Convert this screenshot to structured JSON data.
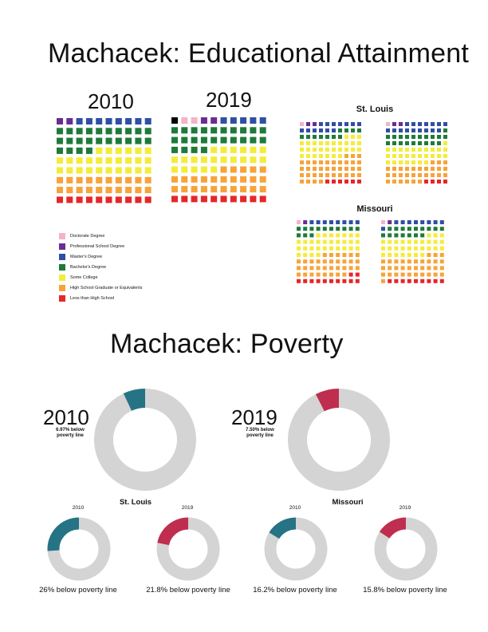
{
  "titles": {
    "education": "Machacek: Educational Attainment",
    "poverty": "Machacek: Poverty"
  },
  "education": {
    "colors": {
      "Doctorate Degree": "#f4b3c8",
      "Professional School Degree": "#6b2c91",
      "Master's Degree": "#2e4fa3",
      "Bachelor's Degree": "#1f7a3a",
      "Some College": "#f4ec3a",
      "High School Graduate or Equivalents": "#f7a33a",
      "Less than High School": "#e6262a",
      "Unknown": "#000000"
    },
    "legend": [
      {
        "label": "Doctorate Degree",
        "color": "#f4b3c8"
      },
      {
        "label": "Professional School Degree",
        "color": "#6b2c91"
      },
      {
        "label": "Master's Degree",
        "color": "#2e4fa3"
      },
      {
        "label": "Bachelor's Degree",
        "color": "#1f7a3a"
      },
      {
        "label": "Some College",
        "color": "#f4ec3a"
      },
      {
        "label": "High School Graduate or Equivalents",
        "color": "#f7a33a"
      },
      {
        "label": "Less than High School",
        "color": "#e6262a"
      }
    ],
    "labels": {
      "st_louis": "St. Louis",
      "missouri": "Missouri"
    }
  },
  "chart_data": [
    {
      "type": "waffle",
      "title": "2010",
      "rows": 9,
      "cols": 10,
      "counts": {
        "Professional School Degree": 2,
        "Master's Degree": 8,
        "Bachelor's Degree": 24,
        "Some College": 26,
        "High School Graduate or Equivalents": 20,
        "Less than High School": 10
      }
    },
    {
      "type": "waffle",
      "title": "2019",
      "rows": 9,
      "cols": 10,
      "counts": {
        "Unknown": 1,
        "Doctorate Degree": 2,
        "Professional School Degree": 2,
        "Master's Degree": 5,
        "Bachelor's Degree": 24,
        "Some College": 21,
        "High School Graduate or Equivalents": 25,
        "Less than High School": 10
      }
    },
    {
      "type": "waffle",
      "group": "St. Louis",
      "title": "",
      "rows": 10,
      "cols": 10,
      "counts": {
        "Doctorate Degree": 1,
        "Professional School Degree": 2,
        "Master's Degree": 13,
        "Bachelor's Degree": 11,
        "Some College": 30,
        "High School Graduate or Equivalents": 37,
        "Less than High School": 6
      }
    },
    {
      "type": "waffle",
      "group": "St. Louis",
      "title": "",
      "rows": 10,
      "cols": 10,
      "counts": {
        "Doctorate Degree": 1,
        "Professional School Degree": 2,
        "Master's Degree": 16,
        "Bachelor's Degree": 20,
        "Some College": 28,
        "High School Graduate or Equivalents": 29,
        "Less than High School": 4
      }
    },
    {
      "type": "waffle",
      "group": "Missouri",
      "title": "",
      "rows": 10,
      "cols": 10,
      "counts": {
        "Doctorate Degree": 1,
        "Professional School Degree": 1,
        "Master's Degree": 8,
        "Bachelor's Degree": 13,
        "Some College": 31,
        "High School Graduate or Equivalents": 34,
        "Less than High School": 12
      }
    },
    {
      "type": "waffle",
      "group": "Missouri",
      "title": "",
      "rows": 10,
      "cols": 10,
      "counts": {
        "Doctorate Degree": 1,
        "Professional School Degree": 1,
        "Master's Degree": 9,
        "Bachelor's Degree": 16,
        "Some College": 30,
        "High School Graduate or Equivalents": 34,
        "Less than High School": 9
      }
    },
    {
      "type": "pie",
      "variant": "donut",
      "title": "2010",
      "label": "6.97% below poverty line",
      "value": 6.97,
      "color": "#257385"
    },
    {
      "type": "pie",
      "variant": "donut",
      "title": "2019",
      "label": "7.50% below poverty line",
      "value": 7.5,
      "color": "#bf2e4f"
    },
    {
      "type": "pie",
      "variant": "donut",
      "group": "St. Louis",
      "title": "2010",
      "label": "26% below poverty line",
      "value": 26,
      "color": "#257385"
    },
    {
      "type": "pie",
      "variant": "donut",
      "group": "St. Louis",
      "title": "2019",
      "label": "21.8% below poverty line",
      "value": 21.8,
      "color": "#bf2e4f"
    },
    {
      "type": "pie",
      "variant": "donut",
      "group": "Missouri",
      "title": "2010",
      "label": "16.2% below poverty line",
      "value": 16.2,
      "color": "#257385"
    },
    {
      "type": "pie",
      "variant": "donut",
      "group": "Missouri",
      "title": "2019",
      "label": "15.8% below poverty line",
      "value": 15.8,
      "color": "#bf2e4f"
    }
  ],
  "poverty": {
    "remainder_color": "#d4d4d4",
    "main_2010_year": "2010",
    "main_2010_note_line1": "6.97% below",
    "main_2010_note_line2": "poverty line",
    "main_2019_year": "2019",
    "main_2019_note_line1": "7.50% below",
    "main_2019_note_line2": "poverty line",
    "group_st_louis": "St. Louis",
    "group_missouri": "Missouri"
  }
}
